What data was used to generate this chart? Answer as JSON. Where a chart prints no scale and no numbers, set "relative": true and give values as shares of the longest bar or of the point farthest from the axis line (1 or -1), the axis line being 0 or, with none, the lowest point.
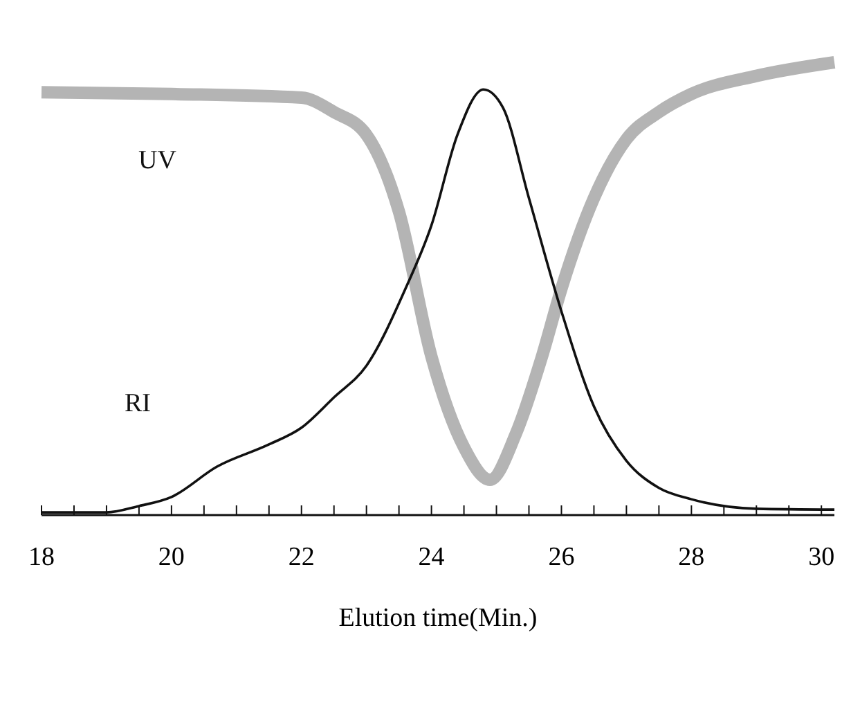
{
  "chart_data": {
    "type": "line",
    "xlabel": "Elution time(Min.)",
    "relative": true,
    "xlim": [
      18,
      30.2
    ],
    "xticks": [
      18,
      {
        "value": 18.5,
        "label": null
      },
      {
        "value": 19,
        "label": null
      },
      {
        "value": 19.5,
        "label": null
      },
      20,
      {
        "value": 20.5,
        "label": null
      },
      {
        "value": 21,
        "label": null
      },
      {
        "value": 21.5,
        "label": null
      },
      22,
      {
        "value": 22.5,
        "label": null
      },
      {
        "value": 23,
        "label": null
      },
      {
        "value": 23.5,
        "label": null
      },
      24,
      {
        "value": 24.5,
        "label": null
      },
      {
        "value": 25,
        "label": null
      },
      {
        "value": 25.5,
        "label": null
      },
      26,
      {
        "value": 26.5,
        "label": null
      },
      {
        "value": 27,
        "label": null
      },
      {
        "value": 27.5,
        "label": null
      },
      28,
      {
        "value": 28.5,
        "label": null
      },
      {
        "value": 29,
        "label": null
      },
      {
        "value": 29.5,
        "label": null
      },
      30
    ],
    "grid": false,
    "marker": "none",
    "line_style": "solid",
    "series": [
      {
        "name": "UV",
        "color": "#b4b4b4",
        "x": [
          18,
          20,
          22,
          22.5,
          23,
          23.5,
          24,
          24.5,
          24.9,
          25.3,
          25.7,
          26,
          26.5,
          27,
          27.5,
          28,
          29,
          30.2
        ],
        "values": [
          0.934,
          0.93,
          0.922,
          0.89,
          0.84,
          0.67,
          0.35,
          0.15,
          0.078,
          0.18,
          0.35,
          0.5,
          0.7,
          0.83,
          0.89,
          0.93,
          0.97,
          1
        ]
      },
      {
        "name": "RI",
        "color": "#111111",
        "x": [
          18,
          19,
          19.5,
          20,
          20.7,
          21.5,
          22,
          22.5,
          23,
          23.6,
          24,
          24.4,
          24.8,
          25.1,
          25.5,
          26,
          26.5,
          27,
          27.5,
          28,
          29,
          30.2
        ],
        "values": [
          0.006,
          0.006,
          0.02,
          0.04,
          0.107,
          0.156,
          0.193,
          0.26,
          0.33,
          0.5,
          0.64,
          0.84,
          0.94,
          0.9,
          0.7,
          0.45,
          0.24,
          0.12,
          0.06,
          0.035,
          0.014,
          0.012
        ]
      }
    ]
  }
}
